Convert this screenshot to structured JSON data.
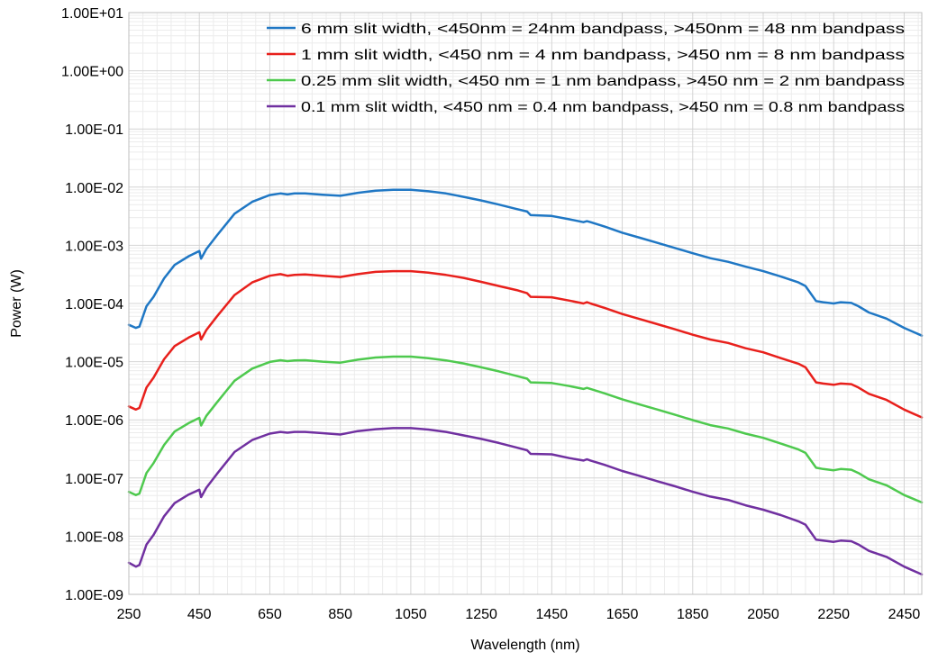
{
  "chart_data": {
    "type": "line",
    "title": "",
    "xlabel": "Wavelength (nm)",
    "ylabel": "Power (W)",
    "x_scale": "linear",
    "y_scale": "log",
    "xlim": [
      250,
      2500
    ],
    "ylim": [
      1e-09,
      10
    ],
    "x_ticks": [
      "250",
      "450",
      "650",
      "850",
      "1050",
      "1250",
      "1450",
      "1650",
      "1850",
      "2050",
      "2250",
      "2450"
    ],
    "y_ticks": [
      "1.00E-09",
      "1.00E-08",
      "1.00E-07",
      "1.00E-06",
      "1.00E-05",
      "1.00E-04",
      "1.00E-03",
      "1.00E-02",
      "1.00E-01",
      "1.00E+00",
      "1.00E+01"
    ],
    "grid": true,
    "legend_position": "top-right",
    "x": [
      250,
      270,
      280,
      300,
      320,
      350,
      380,
      420,
      450,
      455,
      470,
      500,
      550,
      600,
      650,
      680,
      700,
      720,
      750,
      800,
      850,
      900,
      950,
      1000,
      1050,
      1100,
      1150,
      1200,
      1250,
      1300,
      1350,
      1380,
      1390,
      1450,
      1500,
      1540,
      1550,
      1560,
      1600,
      1650,
      1700,
      1750,
      1800,
      1850,
      1900,
      1950,
      2000,
      2050,
      2100,
      2150,
      2170,
      2200,
      2220,
      2250,
      2270,
      2300,
      2320,
      2350,
      2400,
      2450,
      2500
    ],
    "series": [
      {
        "name": "6 mm slit width, <450nm = 24nm bandpass, >450nm = 48 nm bandpass",
        "color": "#1f77c4",
        "values": [
          4.3e-05,
          3.8e-05,
          4e-05,
          9e-05,
          0.00013,
          0.00027,
          0.00046,
          0.00065,
          0.0008,
          0.00059,
          0.00086,
          0.00148,
          0.0035,
          0.0056,
          0.0073,
          0.0078,
          0.0075,
          0.0078,
          0.0078,
          0.0074,
          0.0071,
          0.008,
          0.0087,
          0.009,
          0.009,
          0.0085,
          0.0078,
          0.0068,
          0.0059,
          0.005,
          0.0042,
          0.0038,
          0.0033,
          0.0032,
          0.0028,
          0.0025,
          0.0026,
          0.0025,
          0.0021,
          0.00165,
          0.00135,
          0.0011,
          0.0009,
          0.00073,
          0.0006,
          0.00052,
          0.00043,
          0.00036,
          0.00029,
          0.00023,
          0.0002,
          0.00011,
          0.000105,
          0.0001,
          0.000105,
          0.000102,
          9e-05,
          7e-05,
          5.5e-05,
          3.8e-05,
          2.8e-05
        ]
      },
      {
        "name": "1 mm slit width, <450 nm = 4 nm bandpass, >450 nm = 8 nm bandpass",
        "color": "#e8201c",
        "values": [
          1.7e-06,
          1.5e-06,
          1.6e-06,
          3.6e-06,
          5.3e-06,
          1.1e-05,
          1.85e-05,
          2.6e-05,
          3.2e-05,
          2.4e-05,
          3.5e-05,
          6e-05,
          0.00014,
          0.00023,
          0.0003,
          0.00032,
          0.0003,
          0.00031,
          0.000315,
          0.0003,
          0.000285,
          0.00032,
          0.00035,
          0.00036,
          0.00036,
          0.00034,
          0.00031,
          0.000275,
          0.000235,
          0.0002,
          0.00017,
          0.00015,
          0.00013,
          0.000128,
          0.000112,
          0.0001,
          0.000105,
          0.0001,
          8.4e-05,
          6.6e-05,
          5.4e-05,
          4.4e-05,
          3.6e-05,
          2.9e-05,
          2.4e-05,
          2.1e-05,
          1.7e-05,
          1.45e-05,
          1.15e-05,
          9.2e-06,
          8e-06,
          4.4e-06,
          4.2e-06,
          4e-06,
          4.2e-06,
          4.1e-06,
          3.6e-06,
          2.8e-06,
          2.2e-06,
          1.5e-06,
          1.1e-06
        ]
      },
      {
        "name": "0.25 mm slit width, <450 nm = 1 nm bandpass, >450 nm = 2 nm bandpass",
        "color": "#4ec94e",
        "values": [
          5.8e-08,
          5.1e-08,
          5.4e-08,
          1.22e-07,
          1.8e-07,
          3.7e-07,
          6.3e-07,
          8.8e-07,
          1.08e-06,
          8e-07,
          1.17e-06,
          2e-06,
          4.7e-06,
          7.6e-06,
          9.9e-06,
          1.06e-05,
          1.02e-05,
          1.05e-05,
          1.06e-05,
          1e-05,
          9.6e-06,
          1.08e-05,
          1.18e-05,
          1.22e-05,
          1.22e-05,
          1.15e-05,
          1.05e-05,
          9.3e-06,
          8e-06,
          6.8e-06,
          5.7e-06,
          5.1e-06,
          4.4e-06,
          4.3e-06,
          3.8e-06,
          3.4e-06,
          3.55e-06,
          3.4e-06,
          2.85e-06,
          2.25e-06,
          1.83e-06,
          1.5e-06,
          1.22e-06,
          9.9e-07,
          8.1e-07,
          7.1e-07,
          5.8e-07,
          4.9e-07,
          3.9e-07,
          3.1e-07,
          2.7e-07,
          1.5e-07,
          1.43e-07,
          1.36e-07,
          1.43e-07,
          1.39e-07,
          1.22e-07,
          9.5e-08,
          7.5e-08,
          5.1e-08,
          3.8e-08
        ]
      },
      {
        "name": "0.1 mm slit width, <450 nm = 0.4 nm bandpass, >450 nm = 0.8 nm bandpass",
        "color": "#7030a0",
        "values": [
          3.5e-09,
          3e-09,
          3.2e-09,
          7.2e-09,
          1.05e-08,
          2.2e-08,
          3.7e-08,
          5.2e-08,
          6.3e-08,
          4.7e-08,
          6.8e-08,
          1.18e-07,
          2.8e-07,
          4.5e-07,
          5.8e-07,
          6.2e-07,
          6e-07,
          6.2e-07,
          6.2e-07,
          5.9e-07,
          5.6e-07,
          6.4e-07,
          6.9e-07,
          7.2e-07,
          7.2e-07,
          6.8e-07,
          6.2e-07,
          5.4e-07,
          4.7e-07,
          4e-07,
          3.35e-07,
          3e-07,
          2.6e-07,
          2.55e-07,
          2.2e-07,
          2e-07,
          2.1e-07,
          2e-07,
          1.68e-07,
          1.32e-07,
          1.08e-07,
          8.8e-08,
          7.2e-08,
          5.8e-08,
          4.8e-08,
          4.2e-08,
          3.4e-08,
          2.85e-08,
          2.3e-08,
          1.8e-08,
          1.58e-08,
          8.7e-09,
          8.4e-09,
          8e-09,
          8.4e-09,
          8.2e-09,
          7.2e-09,
          5.6e-09,
          4.4e-09,
          3e-09,
          2.2e-09
        ]
      }
    ]
  }
}
